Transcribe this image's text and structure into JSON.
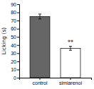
{
  "chart_data": {
    "type": "bar",
    "categories": [
      "control",
      "simiarenol"
    ],
    "values": [
      75,
      36
    ],
    "errors": [
      3,
      2.5
    ],
    "colors": [
      "#666666",
      "#ffffff"
    ],
    "ylabel": "Licking (s)",
    "ylim": [
      0,
      90
    ],
    "yticks": [
      0,
      10,
      20,
      30,
      40,
      50,
      60,
      70,
      80,
      90
    ],
    "annotations": [
      {
        "text": "**",
        "x": "simiarenol"
      }
    ],
    "grid": false
  }
}
